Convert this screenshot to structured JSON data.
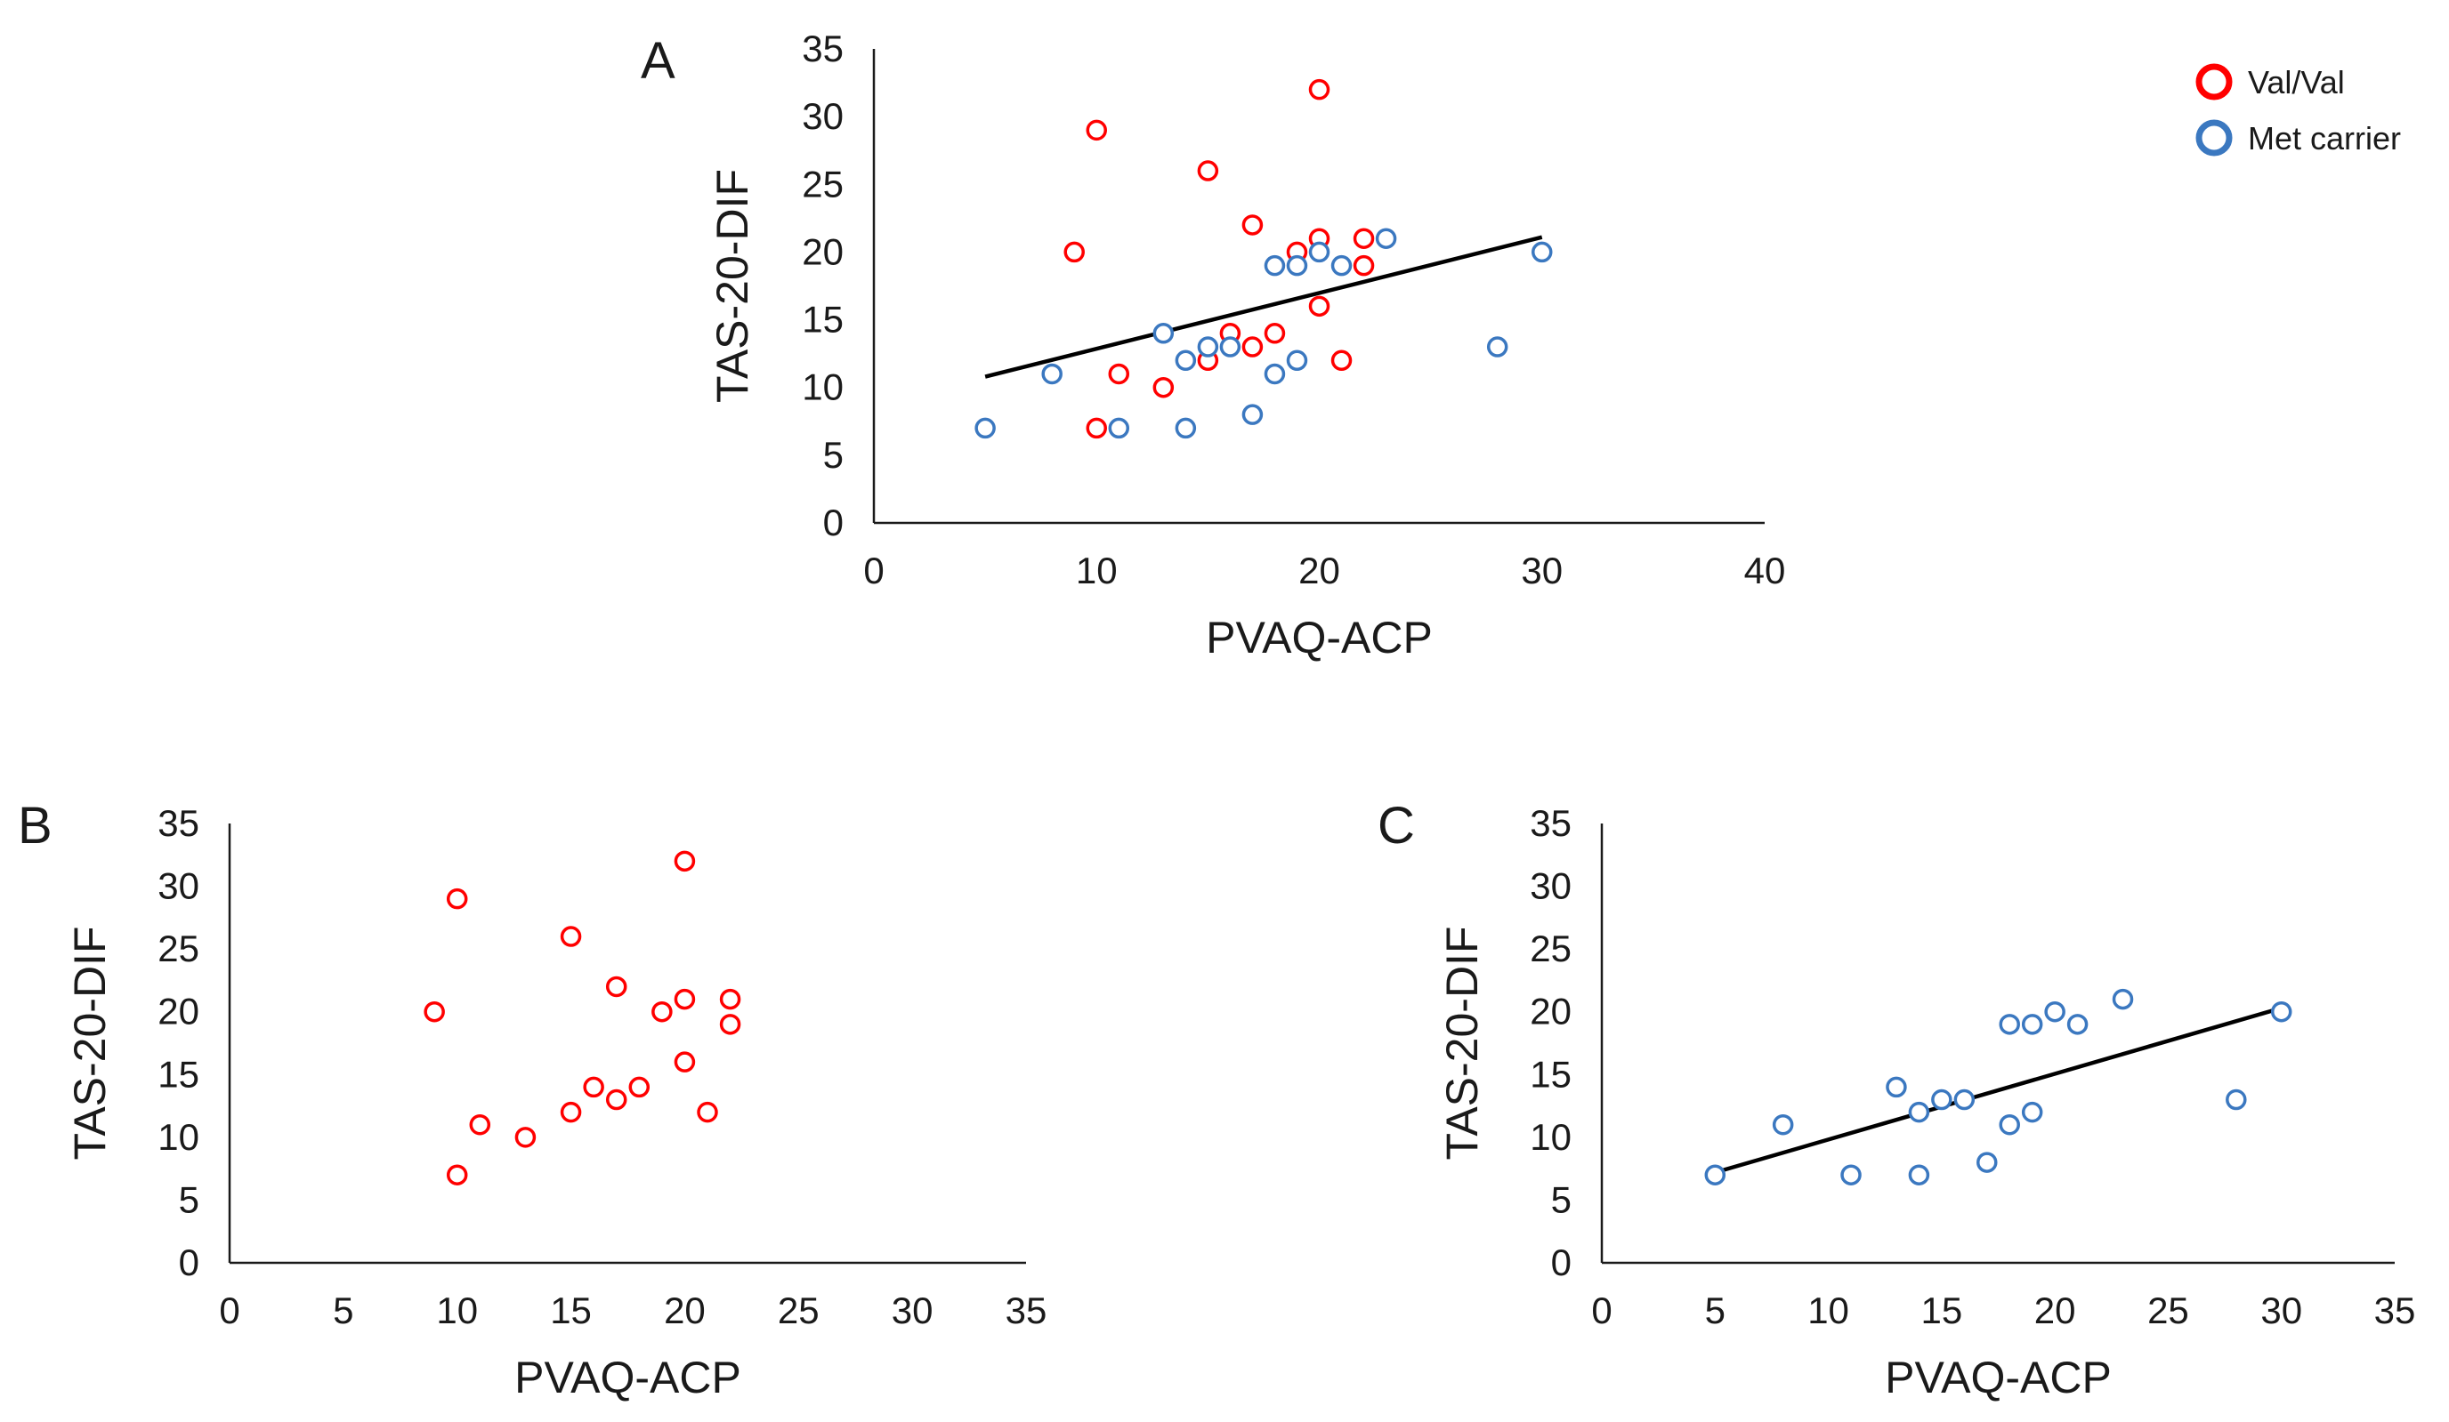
{
  "legend": {
    "items": [
      {
        "label": "Val/Val",
        "color": "#ff0000"
      },
      {
        "label": "Met carrier",
        "color": "#3b78c0"
      }
    ]
  },
  "chart_data": [
    {
      "panel": "A",
      "type": "scatter",
      "xlabel": "PVAQ-ACP",
      "ylabel": "TAS-20-DIF",
      "xlim": [
        0,
        40
      ],
      "ylim": [
        0,
        35
      ],
      "xticks": [
        0,
        10,
        20,
        30,
        40
      ],
      "yticks": [
        0,
        5,
        10,
        15,
        20,
        25,
        30,
        35
      ],
      "series": [
        {
          "name": "Val/Val",
          "color": "#ff0000",
          "points": [
            [
              10,
              29
            ],
            [
              20,
              32
            ],
            [
              15,
              26
            ],
            [
              9,
              20
            ],
            [
              17,
              22
            ],
            [
              19,
              20
            ],
            [
              20,
              21
            ],
            [
              22,
              21
            ],
            [
              22,
              19
            ],
            [
              20,
              16
            ],
            [
              16,
              14
            ],
            [
              18,
              14
            ],
            [
              17,
              13
            ],
            [
              15,
              12
            ],
            [
              21,
              12
            ],
            [
              11,
              11
            ],
            [
              13,
              10
            ],
            [
              10,
              7
            ]
          ]
        },
        {
          "name": "Met carrier",
          "color": "#3b78c0",
          "points": [
            [
              5,
              7
            ],
            [
              8,
              11
            ],
            [
              11,
              7
            ],
            [
              13,
              14
            ],
            [
              14,
              12
            ],
            [
              14,
              7
            ],
            [
              15,
              13
            ],
            [
              16,
              13
            ],
            [
              17,
              8
            ],
            [
              18,
              19
            ],
            [
              18,
              11
            ],
            [
              19,
              19
            ],
            [
              19,
              12
            ],
            [
              20,
              20
            ],
            [
              21,
              19
            ],
            [
              23,
              21
            ],
            [
              28,
              13
            ],
            [
              30,
              20
            ]
          ]
        }
      ],
      "trendline": {
        "x": [
          5,
          30
        ],
        "y": [
          10.8,
          21.1
        ]
      }
    },
    {
      "panel": "B",
      "type": "scatter",
      "xlabel": "PVAQ-ACP",
      "ylabel": "TAS-20-DIF",
      "xlim": [
        0,
        35
      ],
      "ylim": [
        0,
        35
      ],
      "xticks": [
        0,
        5,
        10,
        15,
        20,
        25,
        30,
        35
      ],
      "yticks": [
        0,
        5,
        10,
        15,
        20,
        25,
        30,
        35
      ],
      "series": [
        {
          "name": "Val/Val",
          "color": "#ff0000",
          "points": [
            [
              10,
              29
            ],
            [
              20,
              32
            ],
            [
              15,
              26
            ],
            [
              9,
              20
            ],
            [
              17,
              22
            ],
            [
              19,
              20
            ],
            [
              20,
              21
            ],
            [
              22,
              21
            ],
            [
              22,
              19
            ],
            [
              20,
              16
            ],
            [
              16,
              14
            ],
            [
              18,
              14
            ],
            [
              17,
              13
            ],
            [
              15,
              12
            ],
            [
              21,
              12
            ],
            [
              11,
              11
            ],
            [
              13,
              10
            ],
            [
              10,
              7
            ]
          ]
        }
      ],
      "trendline": null
    },
    {
      "panel": "C",
      "type": "scatter",
      "xlabel": "PVAQ-ACP",
      "ylabel": "TAS-20-DIF",
      "xlim": [
        0,
        35
      ],
      "ylim": [
        0,
        35
      ],
      "xticks": [
        0,
        5,
        10,
        15,
        20,
        25,
        30,
        35
      ],
      "yticks": [
        0,
        5,
        10,
        15,
        20,
        25,
        30,
        35
      ],
      "series": [
        {
          "name": "Met carrier",
          "color": "#3b78c0",
          "points": [
            [
              5,
              7
            ],
            [
              8,
              11
            ],
            [
              11,
              7
            ],
            [
              13,
              14
            ],
            [
              14,
              12
            ],
            [
              14,
              7
            ],
            [
              15,
              13
            ],
            [
              16,
              13
            ],
            [
              17,
              8
            ],
            [
              18,
              19
            ],
            [
              18,
              11
            ],
            [
              19,
              19
            ],
            [
              19,
              12
            ],
            [
              20,
              20
            ],
            [
              21,
              19
            ],
            [
              23,
              21
            ],
            [
              28,
              13
            ],
            [
              30,
              20
            ]
          ]
        }
      ],
      "trendline": {
        "x": [
          5,
          30
        ],
        "y": [
          7.2,
          20.3
        ]
      }
    }
  ]
}
